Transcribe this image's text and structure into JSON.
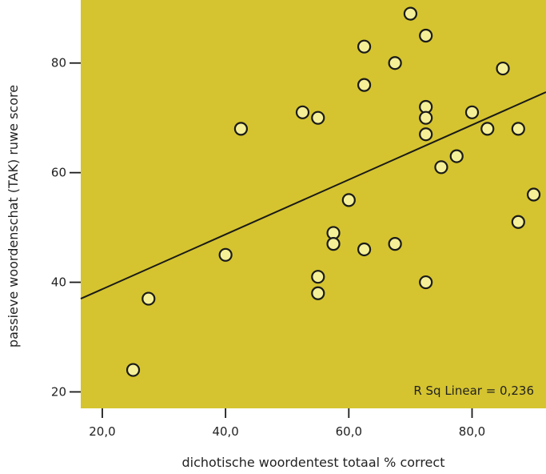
{
  "chart_data": {
    "type": "scatter",
    "xlabel": "dichotische woordentest totaal % correct",
    "ylabel": "passieve woordenschat (TAK) ruwe score",
    "xlim": [
      16.5,
      92
    ],
    "ylim": [
      17,
      91.5
    ],
    "xticks": [
      20,
      40,
      60,
      80
    ],
    "xtick_labels": [
      "20,0",
      "40,0",
      "60,0",
      "80,0"
    ],
    "yticks": [
      20,
      40,
      60,
      80
    ],
    "ytick_labels": [
      "20",
      "40",
      "60",
      "80"
    ],
    "grid": false,
    "annotation": "R Sq Linear = 0,236",
    "colors": {
      "plot_background": "#D5C42F",
      "marker_fill": "#F5F097",
      "marker_stroke": "#1a1a1a",
      "line": "#1a1a1a"
    },
    "points": [
      {
        "x": 25.0,
        "y": 24
      },
      {
        "x": 27.5,
        "y": 37
      },
      {
        "x": 40.0,
        "y": 45
      },
      {
        "x": 42.5,
        "y": 68
      },
      {
        "x": 52.5,
        "y": 71
      },
      {
        "x": 55.0,
        "y": 70
      },
      {
        "x": 55.0,
        "y": 41
      },
      {
        "x": 55.0,
        "y": 38
      },
      {
        "x": 57.5,
        "y": 49
      },
      {
        "x": 57.5,
        "y": 47
      },
      {
        "x": 60.0,
        "y": 55
      },
      {
        "x": 62.5,
        "y": 83
      },
      {
        "x": 62.5,
        "y": 76
      },
      {
        "x": 62.5,
        "y": 46
      },
      {
        "x": 67.5,
        "y": 80
      },
      {
        "x": 67.5,
        "y": 47
      },
      {
        "x": 70.0,
        "y": 89
      },
      {
        "x": 72.5,
        "y": 85
      },
      {
        "x": 72.5,
        "y": 72
      },
      {
        "x": 72.5,
        "y": 70
      },
      {
        "x": 72.5,
        "y": 67
      },
      {
        "x": 72.5,
        "y": 40
      },
      {
        "x": 75.0,
        "y": 61
      },
      {
        "x": 77.5,
        "y": 63
      },
      {
        "x": 80.0,
        "y": 71
      },
      {
        "x": 82.5,
        "y": 68
      },
      {
        "x": 85.0,
        "y": 79
      },
      {
        "x": 87.5,
        "y": 68
      },
      {
        "x": 87.5,
        "y": 51
      },
      {
        "x": 90.0,
        "y": 56
      }
    ],
    "fit_line": {
      "x": [
        16.5,
        92
      ],
      "y": [
        37.0,
        74.7
      ]
    }
  }
}
